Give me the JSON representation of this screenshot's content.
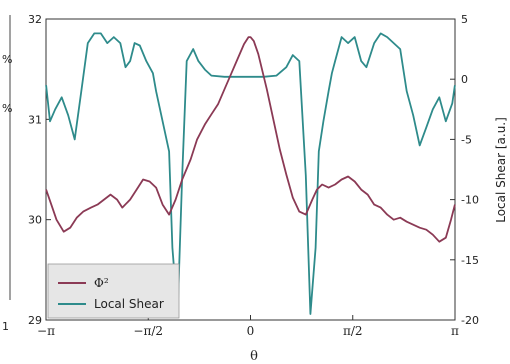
{
  "chart_data": {
    "type": "line",
    "xlabel": "θ",
    "ylabel_left": "",
    "ylabel_right": "Local Shear [a.u.]",
    "xlim": [
      -3.14159,
      3.14159
    ],
    "ylim_left": [
      29,
      32
    ],
    "ylim_right": [
      -20,
      5
    ],
    "x_ticks": [
      {
        "value": -3.14159,
        "label": "−π"
      },
      {
        "value": -1.5708,
        "label": "−π/2"
      },
      {
        "value": 0,
        "label": "0"
      },
      {
        "value": 1.5708,
        "label": "π/2"
      },
      {
        "value": 3.14159,
        "label": "π"
      }
    ],
    "y_ticks_left": [
      29,
      30,
      31,
      32
    ],
    "y_ticks_right": [
      -20,
      -15,
      -10,
      -5,
      0,
      5
    ],
    "left_margin_fragments": [
      "%",
      "%",
      "1"
    ],
    "legend": {
      "placement": "bottom-left",
      "entries": [
        "Φ²",
        "Local Shear"
      ]
    },
    "series": [
      {
        "name": "Φ²",
        "axis": "left",
        "color": "#8b3a55",
        "x": [
          -3.14,
          -3.06,
          -2.98,
          -2.87,
          -2.77,
          -2.67,
          -2.57,
          -2.45,
          -2.35,
          -2.25,
          -2.15,
          -2.05,
          -1.97,
          -1.85,
          -1.75,
          -1.65,
          -1.55,
          -1.45,
          -1.35,
          -1.25,
          -1.15,
          -1.05,
          -0.92,
          -0.82,
          -0.7,
          -0.6,
          -0.5,
          -0.4,
          -0.3,
          -0.2,
          -0.1,
          -0.03,
          0,
          0.05,
          0.12,
          0.25,
          0.35,
          0.45,
          0.55,
          0.65,
          0.75,
          0.85,
          0.95,
          1.02,
          1.1,
          1.2,
          1.3,
          1.4,
          1.5,
          1.6,
          1.7,
          1.8,
          1.9,
          2.0,
          2.1,
          2.2,
          2.3,
          2.4,
          2.5,
          2.6,
          2.7,
          2.8,
          2.9,
          3.0,
          3.08,
          3.14
        ],
        "y": [
          30.3,
          30.15,
          30.0,
          29.88,
          29.92,
          30.02,
          30.08,
          30.12,
          30.15,
          30.2,
          30.25,
          30.2,
          30.12,
          30.2,
          30.3,
          30.4,
          30.38,
          30.32,
          30.15,
          30.05,
          30.2,
          30.4,
          30.6,
          30.8,
          30.95,
          31.05,
          31.15,
          31.3,
          31.45,
          31.6,
          31.75,
          31.82,
          31.82,
          31.78,
          31.65,
          31.3,
          31.0,
          30.7,
          30.45,
          30.22,
          30.08,
          30.05,
          30.2,
          30.3,
          30.35,
          30.32,
          30.35,
          30.4,
          30.43,
          30.38,
          30.3,
          30.25,
          30.15,
          30.12,
          30.05,
          30.0,
          30.02,
          29.98,
          29.95,
          29.92,
          29.9,
          29.85,
          29.78,
          29.82,
          30.0,
          30.15
        ]
      },
      {
        "name": "Local Shear",
        "axis": "right",
        "color": "#2e8b8b",
        "x": [
          -3.14,
          -3.08,
          -3.0,
          -2.9,
          -2.8,
          -2.7,
          -2.6,
          -2.5,
          -2.4,
          -2.3,
          -2.2,
          -2.1,
          -2.0,
          -1.92,
          -1.85,
          -1.78,
          -1.7,
          -1.6,
          -1.5,
          -1.45,
          -1.35,
          -1.25,
          -1.2,
          -1.12,
          -1.05,
          -0.98,
          -0.88,
          -0.8,
          -0.7,
          -0.6,
          -0.4,
          -0.2,
          0,
          0.2,
          0.4,
          0.55,
          0.65,
          0.75,
          0.85,
          0.92,
          1.0,
          1.05,
          1.12,
          1.2,
          1.25,
          1.3,
          1.4,
          1.5,
          1.6,
          1.7,
          1.78,
          1.9,
          2.0,
          2.1,
          2.2,
          2.3,
          2.4,
          2.5,
          2.6,
          2.7,
          2.8,
          2.9,
          3.0,
          3.1,
          3.14
        ],
        "y": [
          -0.5,
          -3.5,
          -2.5,
          -1.5,
          -3.0,
          -5.0,
          -1.0,
          3.0,
          3.8,
          3.8,
          3.0,
          3.5,
          3.0,
          1.0,
          1.5,
          3.0,
          2.8,
          1.5,
          0.5,
          -1.0,
          -3.5,
          -6.0,
          -14.0,
          -19.5,
          -8.0,
          1.5,
          2.5,
          1.5,
          0.8,
          0.3,
          0.2,
          0.2,
          0.2,
          0.2,
          0.3,
          1.0,
          2.0,
          1.5,
          -8.0,
          -19.5,
          -14.0,
          -6.0,
          -3.5,
          -1.0,
          0.5,
          1.5,
          3.5,
          3.0,
          3.5,
          1.5,
          1.0,
          3.0,
          3.8,
          3.5,
          3.0,
          2.5,
          -1.0,
          -3.0,
          -5.5,
          -4.0,
          -2.5,
          -1.5,
          -3.5,
          -2.0,
          -0.5
        ]
      }
    ]
  }
}
